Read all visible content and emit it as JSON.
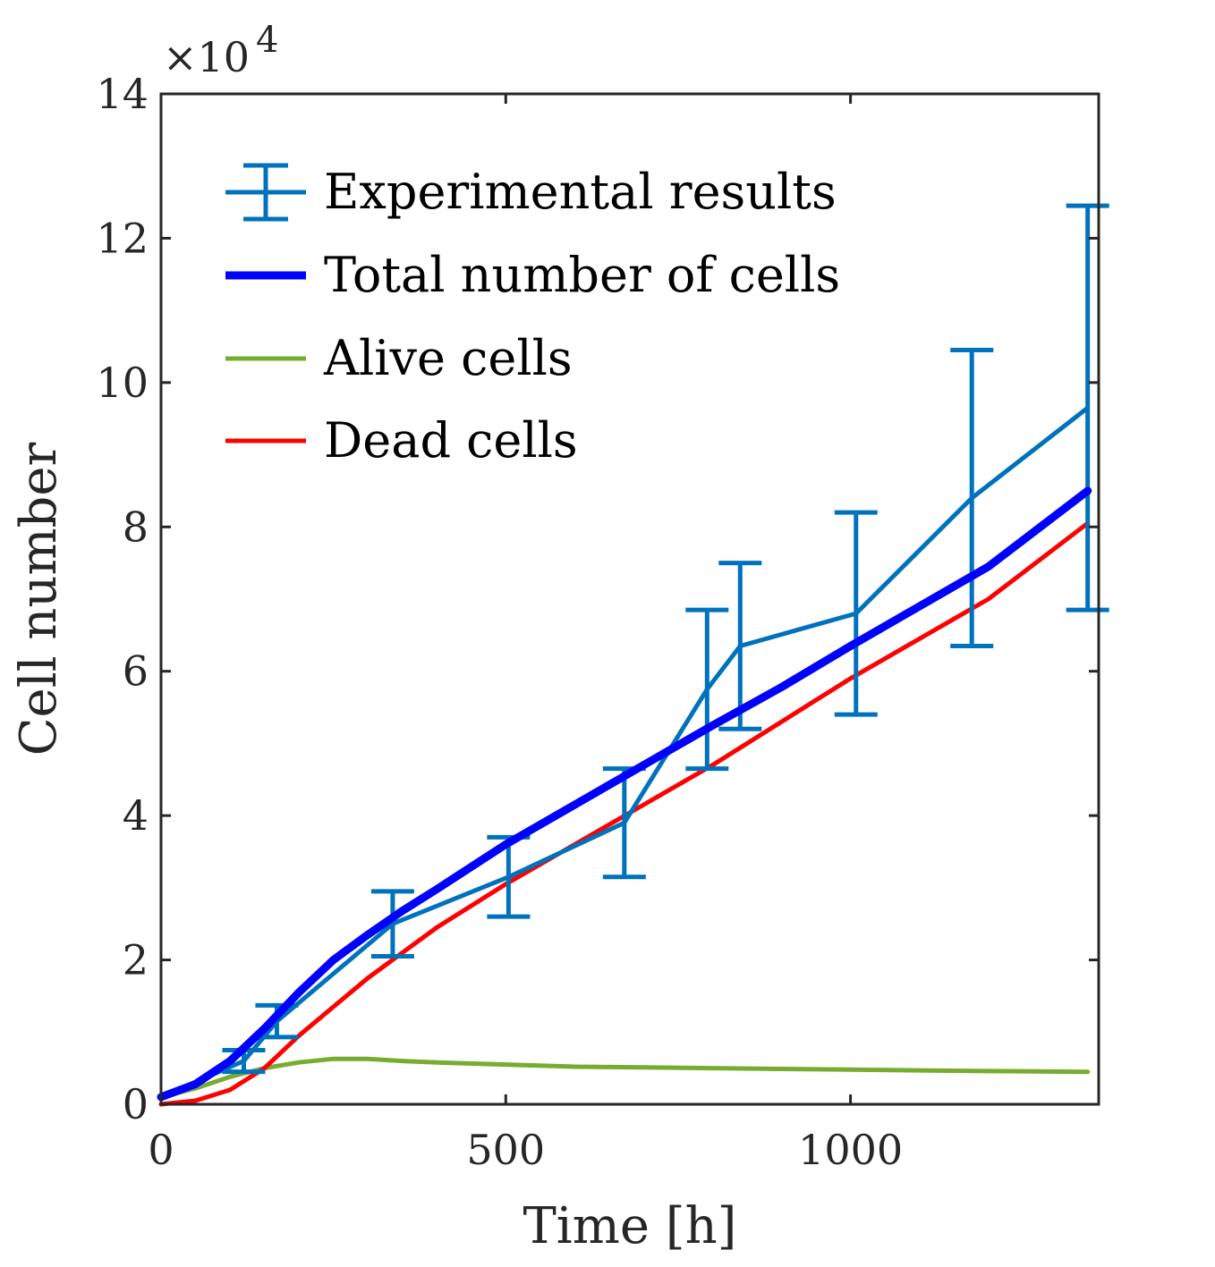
{
  "chart_data": {
    "type": "line",
    "xlabel": "Time [h]",
    "ylabel": "Cell number",
    "xlim": [
      0,
      1360
    ],
    "ylim": [
      0,
      14
    ],
    "x_ticks": [
      0,
      500,
      1000
    ],
    "x_tick_labels": [
      "0",
      "500",
      "1000"
    ],
    "y_ticks": [
      0,
      2,
      4,
      6,
      8,
      10,
      12,
      14
    ],
    "y_tick_labels": [
      "0",
      "2",
      "4",
      "6",
      "8",
      "10",
      "12",
      "14"
    ],
    "y_exponent_base": "×10",
    "y_exponent_power": "4",
    "legend_position": "top-left",
    "series": [
      {
        "name": "Experimental results",
        "style": "errorbar",
        "color": "#0072BD",
        "x": [
          0,
          120,
          168,
          336,
          504,
          672,
          792,
          840,
          1008,
          1176,
          1344
        ],
        "y": [
          0.1,
          0.6,
          1.15,
          2.5,
          3.15,
          3.9,
          5.75,
          6.35,
          6.8,
          8.4,
          9.65
        ],
        "err": [
          0.0,
          0.15,
          0.22,
          0.45,
          0.55,
          0.75,
          1.1,
          1.15,
          1.4,
          2.05,
          2.8
        ]
      },
      {
        "name": "Total number of cells",
        "style": "line-thick",
        "color": "#0000FF",
        "x": [
          0,
          50,
          100,
          150,
          200,
          250,
          300,
          350,
          400,
          500,
          600,
          700,
          800,
          900,
          1000,
          1100,
          1200,
          1344
        ],
        "y": [
          0.1,
          0.28,
          0.6,
          1.05,
          1.55,
          2.0,
          2.35,
          2.68,
          2.98,
          3.6,
          4.15,
          4.7,
          5.25,
          5.78,
          6.35,
          6.9,
          7.45,
          8.5
        ]
      },
      {
        "name": "Alive cells",
        "style": "line",
        "color": "#77AC30",
        "x": [
          0,
          50,
          100,
          150,
          200,
          250,
          300,
          350,
          400,
          500,
          600,
          700,
          800,
          900,
          1000,
          1100,
          1200,
          1344
        ],
        "y": [
          0.1,
          0.22,
          0.38,
          0.5,
          0.58,
          0.63,
          0.63,
          0.6,
          0.58,
          0.55,
          0.52,
          0.51,
          0.5,
          0.49,
          0.48,
          0.47,
          0.46,
          0.45
        ]
      },
      {
        "name": "Dead cells",
        "style": "line",
        "color": "#FF0000",
        "x": [
          0,
          50,
          100,
          150,
          200,
          250,
          300,
          350,
          400,
          500,
          600,
          700,
          800,
          900,
          1000,
          1100,
          1200,
          1344
        ],
        "y": [
          0.0,
          0.05,
          0.2,
          0.5,
          0.95,
          1.35,
          1.75,
          2.1,
          2.45,
          3.05,
          3.6,
          4.15,
          4.7,
          5.3,
          5.9,
          6.45,
          7.0,
          8.05
        ]
      }
    ]
  }
}
